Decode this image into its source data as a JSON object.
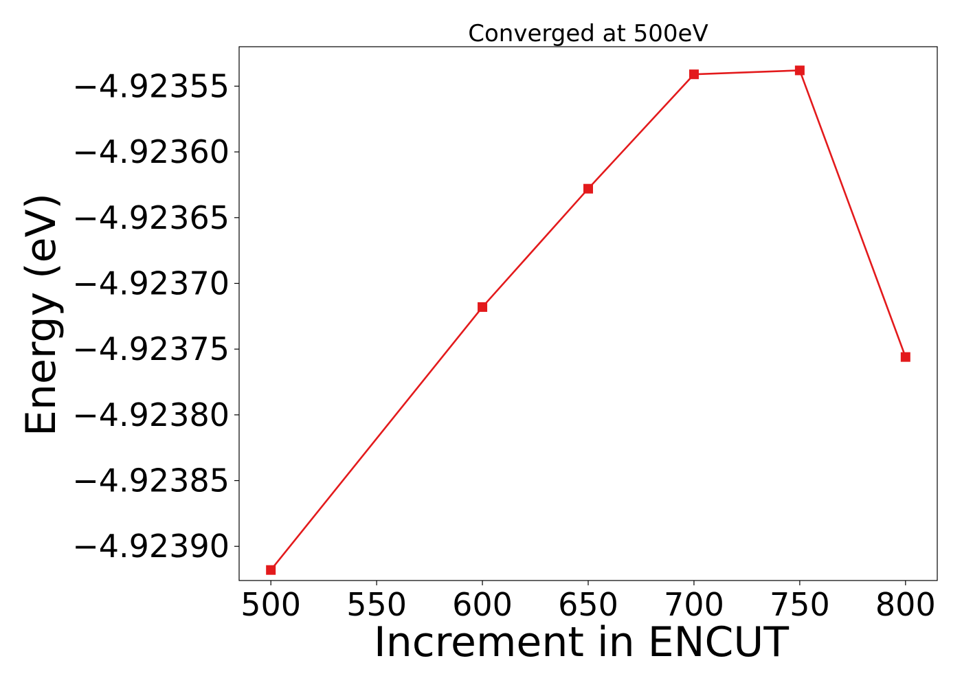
{
  "chart_data": {
    "type": "line",
    "title": "Converged at 500eV",
    "xlabel": "Increment in ENCUT",
    "ylabel": "Energy (eV)",
    "x": [
      500,
      600,
      650,
      700,
      750,
      800
    ],
    "series": [
      {
        "values": [
          -4.923918,
          -4.923718,
          -4.923628,
          -4.923541,
          -4.923538,
          -4.923756
        ],
        "color": "#e31a1c",
        "marker": "square"
      }
    ],
    "xlim": [
      485,
      815
    ],
    "ylim": [
      -4.923926,
      -4.92352
    ],
    "xticks": [
      500,
      550,
      600,
      650,
      700,
      750,
      800
    ],
    "xtick_labels": [
      "500",
      "550",
      "600",
      "650",
      "700",
      "750",
      "800"
    ],
    "yticks": [
      -4.92355,
      -4.9236,
      -4.92365,
      -4.9237,
      -4.92375,
      -4.9238,
      -4.92385,
      -4.9239
    ],
    "ytick_labels": [
      "−4.92355",
      "−4.92360",
      "−4.92365",
      "−4.92370",
      "−4.92375",
      "−4.92380",
      "−4.92385",
      "−4.92390"
    ],
    "grid": false,
    "legend": "none"
  }
}
